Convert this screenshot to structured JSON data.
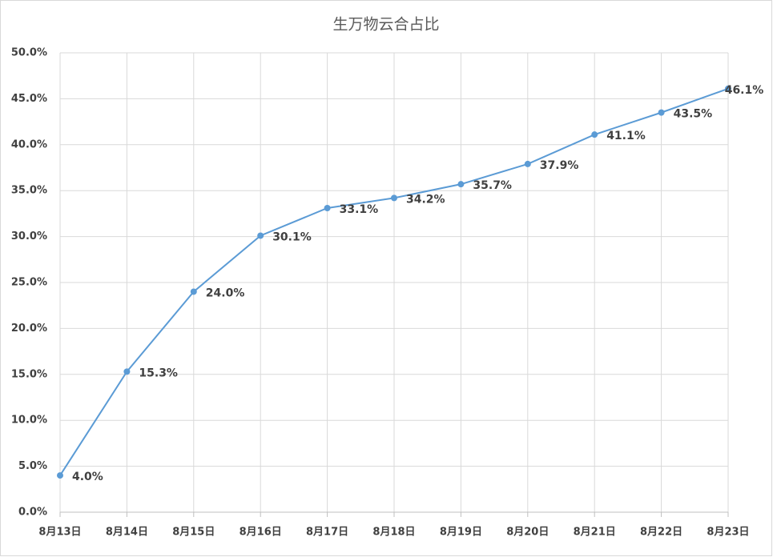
{
  "chart_data": {
    "type": "line",
    "title": "生万物云合占比",
    "categories": [
      "8月13日",
      "8月14日",
      "8月15日",
      "8月16日",
      "8月17日",
      "8月18日",
      "8月19日",
      "8月20日",
      "8月21日",
      "8月22日",
      "8月23日"
    ],
    "values": [
      4.0,
      15.3,
      24.0,
      30.1,
      33.1,
      34.2,
      35.7,
      37.9,
      41.1,
      43.5,
      46.1
    ],
    "value_labels": [
      "4.0%",
      "15.3%",
      "24.0%",
      "30.1%",
      "33.1%",
      "34.2%",
      "35.7%",
      "37.9%",
      "41.1%",
      "43.5%",
      "46.1%"
    ],
    "color": "#5b9bd5",
    "ylim": [
      0,
      50
    ],
    "yticks": [
      {
        "value": 0,
        "label": "0.0%"
      },
      {
        "value": 5,
        "label": "5.0%"
      },
      {
        "value": 10,
        "label": "10.0%"
      },
      {
        "value": 15,
        "label": "15.0%"
      },
      {
        "value": 20,
        "label": "20.0%"
      },
      {
        "value": 25,
        "label": "25.0%"
      },
      {
        "value": 30,
        "label": "30.0%"
      },
      {
        "value": 35,
        "label": "35.0%"
      },
      {
        "value": 40,
        "label": "40.0%"
      },
      {
        "value": 45,
        "label": "45.0%"
      },
      {
        "value": 50,
        "label": "50.0%"
      }
    ],
    "grid": true
  }
}
